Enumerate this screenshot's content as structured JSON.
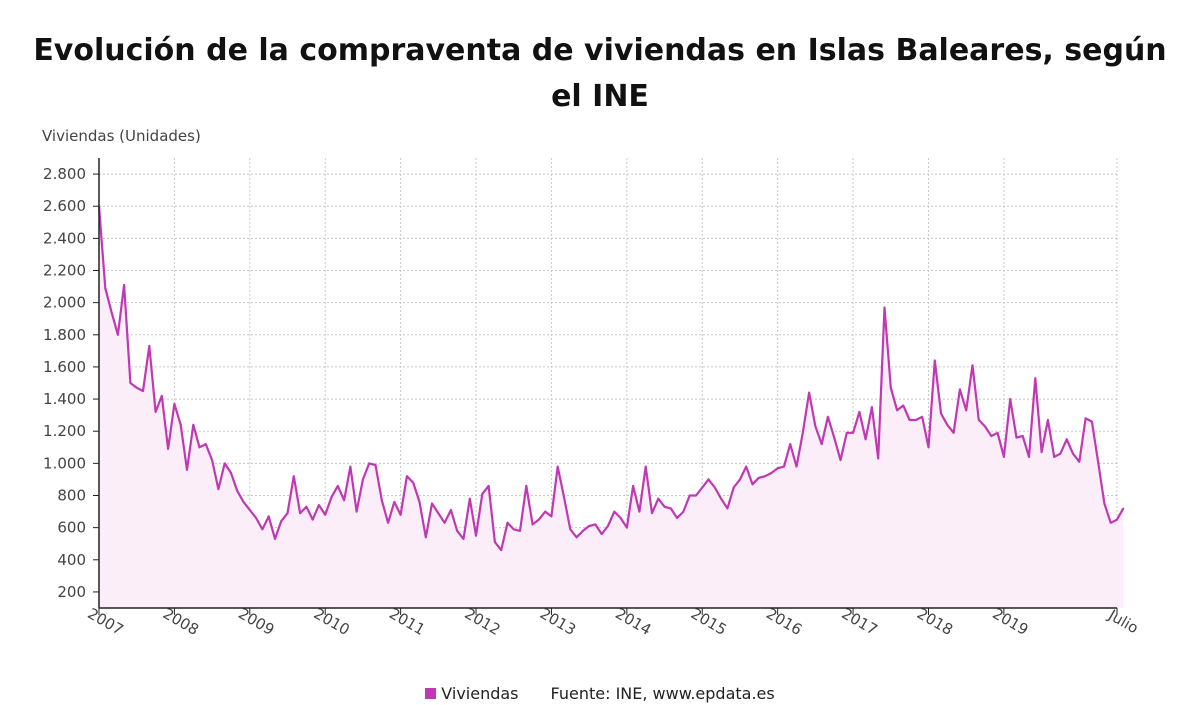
{
  "title": "Evolución de la compraventa de viviendas en Islas Baleares, según el INE",
  "y_unit": "Viviendas (Unidades)",
  "legend": {
    "label": "Viviendas",
    "source": "Fuente: INE, www.epdata.es"
  },
  "colors": {
    "line": "#c038b4",
    "area": "#fbeef8",
    "grid": "#c8c8c8",
    "axis": "#222222",
    "text": "#444444"
  },
  "chart_data": {
    "type": "area",
    "title": "Evolución de la compraventa de viviendas en Islas Baleares, según el INE",
    "ylabel": "Viviendas (Unidades)",
    "xlabel": "",
    "ylim": [
      100,
      2900
    ],
    "yticks": [
      200,
      400,
      600,
      800,
      1000,
      1200,
      1400,
      1600,
      1800,
      2000,
      2200,
      2400,
      2600,
      2800
    ],
    "ytick_labels": [
      "200",
      "400",
      "600",
      "800",
      "1.000",
      "1.200",
      "1.400",
      "1.600",
      "1.800",
      "2.000",
      "2.200",
      "2.400",
      "2.600",
      "2.800"
    ],
    "x_start": "2007-01",
    "x_end": "2020-07",
    "xticks": [
      "2007-01",
      "2008-01",
      "2009-01",
      "2010-01",
      "2011-01",
      "2012-01",
      "2013-01",
      "2014-01",
      "2015-01",
      "2016-01",
      "2017-01",
      "2018-01",
      "2019-01",
      "2020-07"
    ],
    "xtick_labels": [
      "2007",
      "2008",
      "2009",
      "2010",
      "2011",
      "2012",
      "2013",
      "2014",
      "2015",
      "2016",
      "2017",
      "2018",
      "2019",
      "Julio"
    ],
    "grid": true,
    "legend_position": "bottom",
    "series": [
      {
        "name": "Viviendas",
        "color": "#c038b4",
        "values": [
          2600,
          2090,
          1940,
          1800,
          2110,
          1500,
          1470,
          1450,
          1730,
          1320,
          1420,
          1090,
          1370,
          1240,
          960,
          1240,
          1100,
          1120,
          1020,
          840,
          1000,
          940,
          830,
          760,
          710,
          660,
          590,
          670,
          530,
          640,
          690,
          920,
          690,
          730,
          650,
          740,
          680,
          790,
          860,
          770,
          980,
          700,
          900,
          1000,
          990,
          770,
          630,
          760,
          680,
          920,
          880,
          760,
          540,
          750,
          690,
          630,
          710,
          580,
          530,
          780,
          550,
          810,
          860,
          510,
          460,
          630,
          590,
          580,
          860,
          620,
          650,
          700,
          670,
          980,
          790,
          590,
          540,
          580,
          610,
          620,
          560,
          610,
          700,
          660,
          600,
          860,
          700,
          980,
          690,
          780,
          730,
          720,
          660,
          700,
          800,
          800,
          850,
          900,
          850,
          780,
          720,
          850,
          900,
          980,
          870,
          910,
          920,
          940,
          970,
          980,
          1120,
          980,
          1190,
          1440,
          1230,
          1120,
          1290,
          1160,
          1020,
          1190,
          1190,
          1320,
          1150,
          1350,
          1030,
          1970,
          1470,
          1330,
          1360,
          1270,
          1270,
          1290,
          1100,
          1640,
          1310,
          1240,
          1190,
          1460,
          1330,
          1610,
          1270,
          1230,
          1170,
          1190,
          1040,
          1400,
          1160,
          1170,
          1040,
          1530,
          1070,
          1270,
          1040,
          1060,
          1150,
          1060,
          1010,
          1280,
          1260,
          1010,
          750,
          630,
          650,
          720
        ]
      }
    ]
  }
}
